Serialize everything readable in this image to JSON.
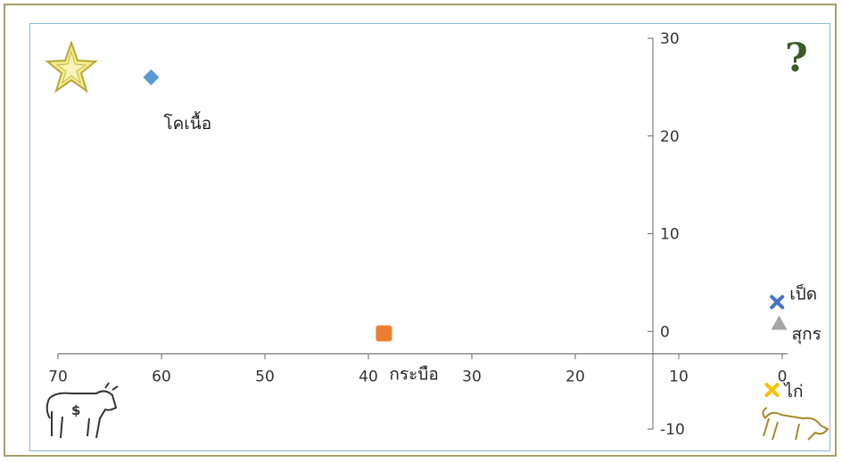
{
  "chart_data": {
    "type": "scatter",
    "xlim": [
      70,
      0
    ],
    "ylim": [
      -10,
      30
    ],
    "x_axis_reversed": true,
    "x_ticks": [
      70,
      60,
      50,
      40,
      30,
      20,
      10,
      0
    ],
    "y_ticks": [
      -10,
      0,
      10,
      20,
      30
    ],
    "x_tick_labels": [
      "70",
      "60",
      "50",
      "40",
      "30",
      "20",
      "10",
      "0"
    ],
    "y_tick_labels": [
      "-10",
      "0",
      "10",
      "20",
      "30"
    ],
    "grid": false,
    "points": [
      {
        "label": "โคเนื้อ",
        "x": 61,
        "y": 26,
        "marker": "diamond",
        "color": "#5b9bd5"
      },
      {
        "label": "กระบือ",
        "x": 38.5,
        "y": -0.2,
        "marker": "square",
        "color": "#ed7d31"
      },
      {
        "label": "เป็ด",
        "x": 0.5,
        "y": 3,
        "marker": "x",
        "color": "#4472c4"
      },
      {
        "label": "สุกร",
        "x": 0.3,
        "y": 0.8,
        "marker": "triangle",
        "color": "#a5a5a5"
      },
      {
        "label": "ไก่",
        "x": 1,
        "y": -6,
        "marker": "x",
        "color": "#ffc000"
      }
    ]
  },
  "decorations": {
    "question_mark": "?",
    "cow_sign": "$",
    "icons": [
      "star-icon",
      "question-icon",
      "cow-icon",
      "dog-icon"
    ]
  }
}
